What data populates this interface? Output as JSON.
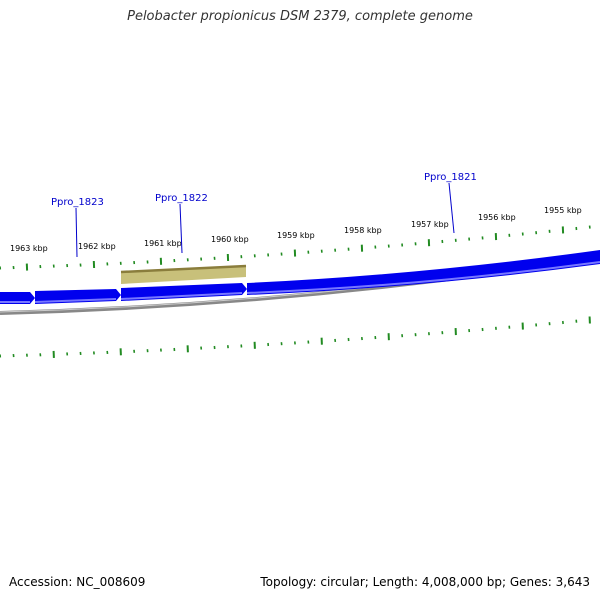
{
  "title": "Pelobacter propionicus DSM 2379, complete genome",
  "footer": {
    "accession": "Accession: NC_008609",
    "info": "Topology: circular; Length: 4,008,000 bp; Genes: 3,643"
  },
  "scale": {
    "ticks_kbp": [
      1963,
      1962,
      1961,
      1960,
      1959,
      1958,
      1957,
      1956,
      1955
    ],
    "labels": [
      "1963 kbp",
      "1962 kbp",
      "1961 kbp",
      "1960 kbp",
      "1959 kbp",
      "1958 kbp",
      "1957 kbp",
      "1956 kbp",
      "1955 kbp"
    ]
  },
  "genes": [
    {
      "name": "Ppro_1823"
    },
    {
      "name": "Ppro_1822"
    },
    {
      "name": "Ppro_1821"
    }
  ],
  "colors": {
    "gene_fill": "#0000ee",
    "gene_highlight": "#7777ff",
    "feature_fill": "#c8c07a",
    "feature_edge": "#8a7d3c",
    "backbone": "#888888",
    "tick": "#228b22",
    "gene_label": "#0000cc"
  }
}
